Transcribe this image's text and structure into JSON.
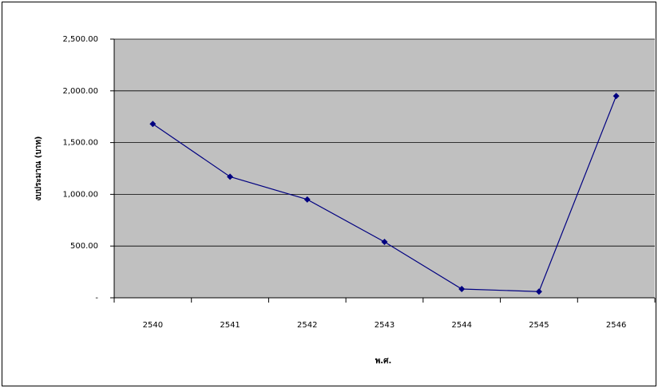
{
  "chart_data": {
    "type": "line",
    "x_label": "พ.ศ.",
    "y_label": "งบประมาณ (บาท)",
    "categories": [
      "2540",
      "2541",
      "2542",
      "2543",
      "2544",
      "2545",
      "2546"
    ],
    "series": [
      {
        "name": "งบประมาณ",
        "color": "#000080",
        "values": [
          1680,
          1170,
          950,
          540,
          85,
          60,
          1950
        ]
      }
    ],
    "ylim": [
      0,
      2500
    ],
    "yticks": [
      {
        "value": 0,
        "label": "-"
      },
      {
        "value": 500,
        "label": "500.00"
      },
      {
        "value": 1000,
        "label": "1,000.00"
      },
      {
        "value": 1500,
        "label": "1,500.00"
      },
      {
        "value": 2000,
        "label": "2,000.00"
      },
      {
        "value": 2500,
        "label": "2,500.00"
      }
    ],
    "grid": true,
    "plot_background": "#c0c0c0"
  }
}
